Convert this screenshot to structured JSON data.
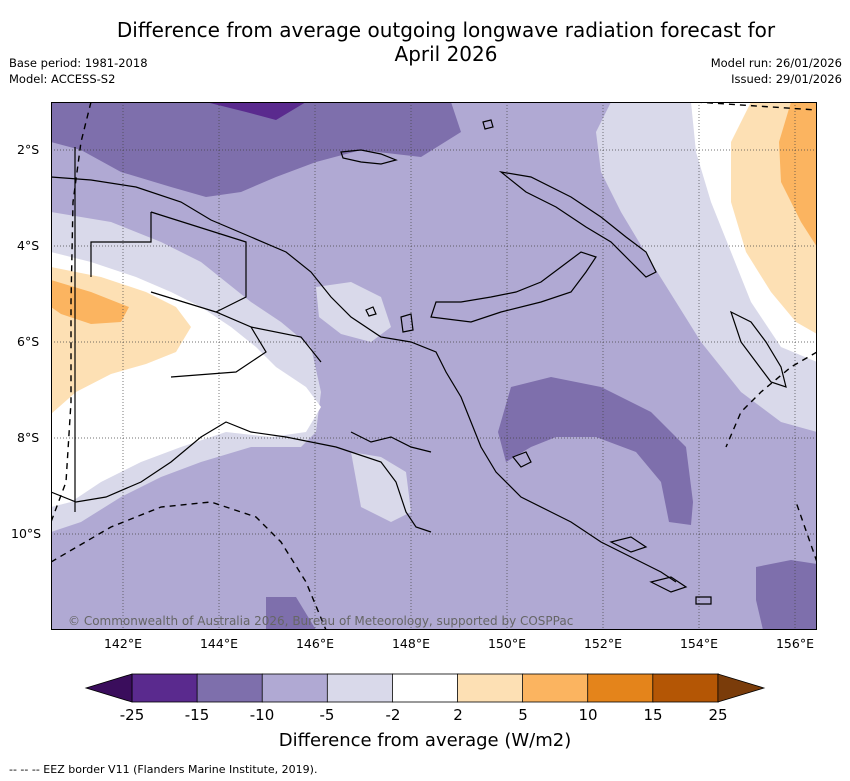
{
  "title_line1": "Difference from average outgoing longwave radiation forecast for",
  "title_line2": "April 2026",
  "base_period": "Base period: 1981-2018",
  "model": "Model: ACCESS-S2",
  "model_run": "Model run: 26/01/2026",
  "issued": "Issued: 29/01/2026",
  "lat_labels": [
    "2°S",
    "4°S",
    "6°S",
    "8°S",
    "10°S"
  ],
  "lon_labels": [
    "142°E",
    "144°E",
    "146°E",
    "148°E",
    "150°E",
    "152°E",
    "154°E",
    "156°E"
  ],
  "colorbar": {
    "ticks": [
      "-25",
      "-15",
      "-10",
      "-5",
      "-2",
      "2",
      "5",
      "10",
      "15",
      "25"
    ],
    "colors": [
      "#3a0d5c",
      "#5a2a8e",
      "#7e6fac",
      "#b0a9d3",
      "#d9d9ea",
      "#ffffff",
      "#fde0b4",
      "#fbb460",
      "#e4841b",
      "#b45605",
      "#7a3c0a"
    ],
    "title": "Difference from average (W/m2)"
  },
  "copyright": "© Commonwealth of Australia 2026, Bureau of Meteorology, supported by COSPPac",
  "footnote": "--  --  -- EEZ border V11 (Flanders Marine Institute, 2019)."
}
